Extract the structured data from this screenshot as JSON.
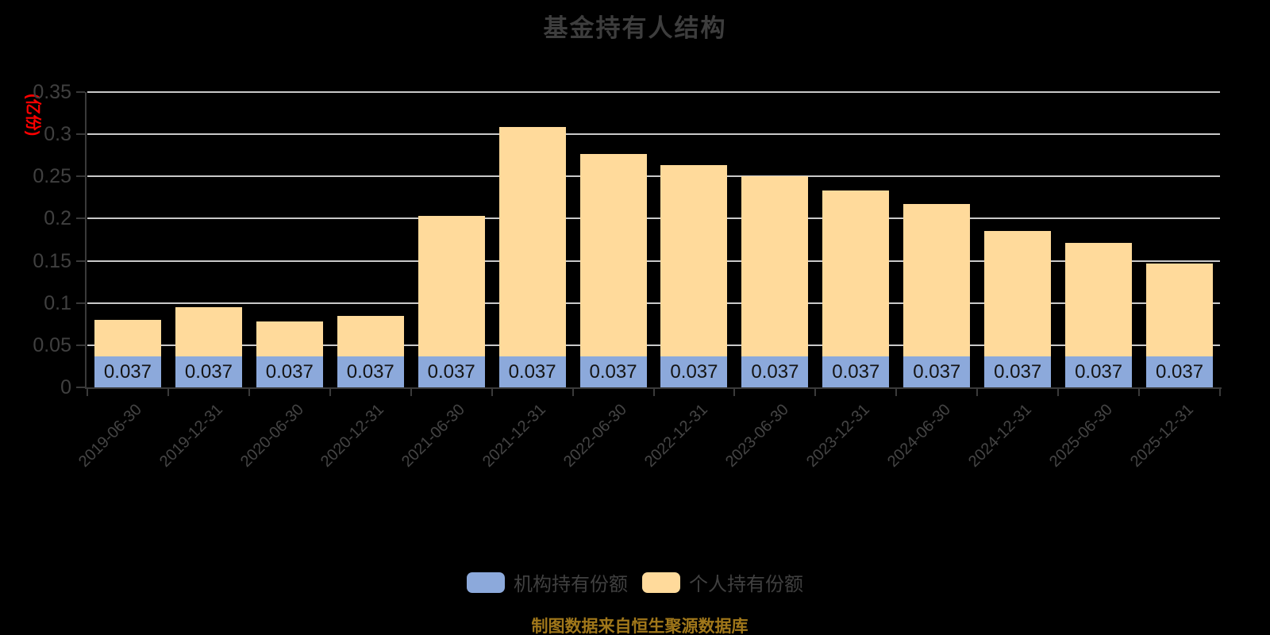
{
  "header": {
    "title": "基金持有人结构"
  },
  "chart_data": {
    "type": "bar",
    "stacked": true,
    "title": "基金持有人结构",
    "ylabel": "(亿份)",
    "xlabel": "",
    "ylim": [
      0,
      0.35
    ],
    "ytick_labels": [
      "0",
      "0.05",
      "0.1",
      "0.15",
      "0.2",
      "0.25",
      "0.3",
      "0.35"
    ],
    "grid": true,
    "legend_position": "bottom",
    "categories": [
      "2019-06-30",
      "2019-12-31",
      "2020-06-30",
      "2020-12-31",
      "2021-06-30",
      "2021-12-31",
      "2022-06-30",
      "2022-12-31",
      "2023-06-30",
      "2023-12-31",
      "2024-06-30",
      "2024-12-31",
      "2025-06-30",
      "2025-12-31"
    ],
    "series": [
      {
        "name": "机构持有份额",
        "color": "#8ca9db",
        "values": [
          0.037,
          0.037,
          0.037,
          0.037,
          0.037,
          0.037,
          0.037,
          0.037,
          0.037,
          0.037,
          0.037,
          0.037,
          0.037,
          0.037
        ],
        "data_labels": [
          "0.037",
          "0.037",
          "0.037",
          "0.037",
          "0.037",
          "0.037",
          "0.037",
          "0.037",
          "0.037",
          "0.037",
          "0.037",
          "0.037",
          "0.037",
          "0.037"
        ]
      },
      {
        "name": "个人持有份额",
        "color": "#ffda9b",
        "values": [
          0.043,
          0.058,
          0.041,
          0.048,
          0.166,
          0.272,
          0.24,
          0.226,
          0.213,
          0.196,
          0.18,
          0.148,
          0.134,
          0.11
        ]
      }
    ],
    "totals": [
      0.08,
      0.095,
      0.078,
      0.085,
      0.203,
      0.309,
      0.277,
      0.263,
      0.25,
      0.233,
      0.217,
      0.185,
      0.171,
      0.147
    ]
  },
  "footer": {
    "source_note": "制图数据来自恒生聚源数据库"
  },
  "colors": {
    "background": "#000000",
    "title_text": "#3d3d3d",
    "axis_text": "#404040",
    "axis_line": "#3a3a3a",
    "gridline": "#c9c9c9",
    "y_axis_title": "#ff0000",
    "institutional_bar": "#8ca9db",
    "personal_bar": "#ffda9b",
    "bar_value_text": "#141414",
    "source_note_text": "#a0771a"
  }
}
